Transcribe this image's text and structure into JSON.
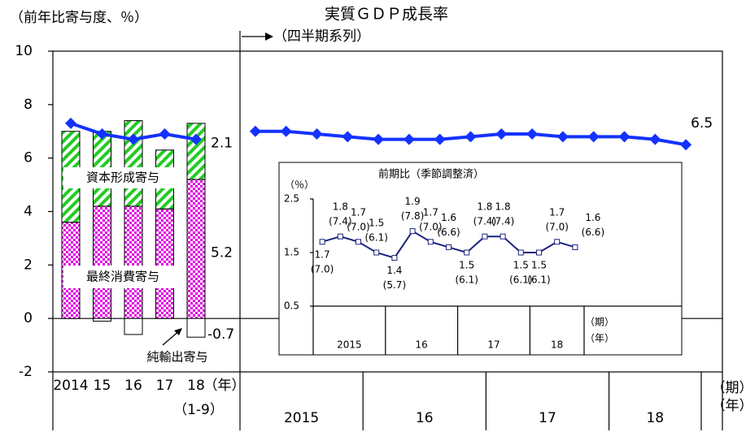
{
  "chart_data": [
    {
      "type": "bar",
      "stacked": true,
      "ylabel": "（前年比寄与度、％）",
      "categories": [
        "2014",
        "15",
        "16",
        "17",
        "18"
      ],
      "category_note": "（1-9）",
      "x_unit": "（年）",
      "ylim": [
        -2,
        10
      ],
      "yticks": [
        -2,
        0,
        2,
        4,
        6,
        8,
        10
      ],
      "series": [
        {
          "name": "最終消費寄与",
          "color": "#e000e0",
          "values": [
            3.6,
            4.2,
            4.2,
            4.1,
            5.2
          ]
        },
        {
          "name": "資本形成寄与",
          "color": "#22cc22",
          "values": [
            3.4,
            2.8,
            3.2,
            2.2,
            2.1
          ]
        },
        {
          "name": "純輸出寄与",
          "color": "#ffffff",
          "values": [
            0,
            -0.1,
            -0.6,
            0,
            -0.7
          ]
        }
      ],
      "line": {
        "color": "#1432ff",
        "values": [
          7.3,
          6.9,
          6.7,
          6.9,
          6.7
        ]
      }
    },
    {
      "type": "line",
      "title": "実質ＧＤＰ成長率",
      "subtitle": "（四半期系列）",
      "categories": [
        null,
        null,
        null,
        null,
        null,
        null,
        null,
        null,
        null,
        null,
        null,
        null,
        null,
        null,
        null
      ],
      "groups": [
        {
          "label": "2015",
          "count": 4
        },
        {
          "label": "16",
          "count": 4
        },
        {
          "label": "17",
          "count": 4
        },
        {
          "label": "18",
          "count": 3
        }
      ],
      "x_units": [
        "（期）",
        "（年）"
      ],
      "color": "#1432ff",
      "values": [
        7.0,
        7.0,
        6.9,
        6.8,
        6.7,
        6.7,
        6.7,
        6.8,
        6.9,
        6.9,
        6.8,
        6.8,
        6.8,
        6.7,
        6.5
      ]
    },
    {
      "type": "line",
      "title": "前期比（季節調整済）",
      "ylabel": "（％）",
      "ylim": [
        0.5,
        2.5
      ],
      "yticks": [
        0.5,
        1.5,
        2.5
      ],
      "categories": [
        null,
        null,
        null,
        null,
        null,
        null,
        null,
        null,
        null,
        null,
        null,
        null,
        null,
        null,
        null
      ],
      "groups": [
        {
          "label": "2015",
          "count": 4
        },
        {
          "label": "16",
          "count": 4
        },
        {
          "label": "17",
          "count": 4
        },
        {
          "label": "18",
          "count": 3
        }
      ],
      "x_units": [
        "（期）",
        "（年）"
      ],
      "color": "#1a237e",
      "values": [
        1.7,
        1.8,
        1.7,
        1.5,
        1.4,
        1.9,
        1.7,
        1.6,
        1.5,
        1.8,
        1.8,
        1.5,
        1.5,
        1.7,
        1.6
      ],
      "annualized": {
        "values": [
          7.0,
          7.4,
          7.0,
          6.1,
          5.7,
          7.8,
          7.0,
          6.6,
          6.1,
          7.4,
          7.4,
          6.1,
          6.1,
          7.0,
          6.6
        ],
        "value_labels": [
          "(7.0)",
          "(7.4)",
          "(7.0)",
          "(6.1)",
          "(5.7)",
          "(7.8)",
          "(7.0)",
          "(6.6)",
          "(6.1)",
          "(7.4)",
          "(7.4)",
          "(6.1)",
          "(6.1)",
          "(7.0)",
          "(6.6)"
        ]
      }
    }
  ]
}
